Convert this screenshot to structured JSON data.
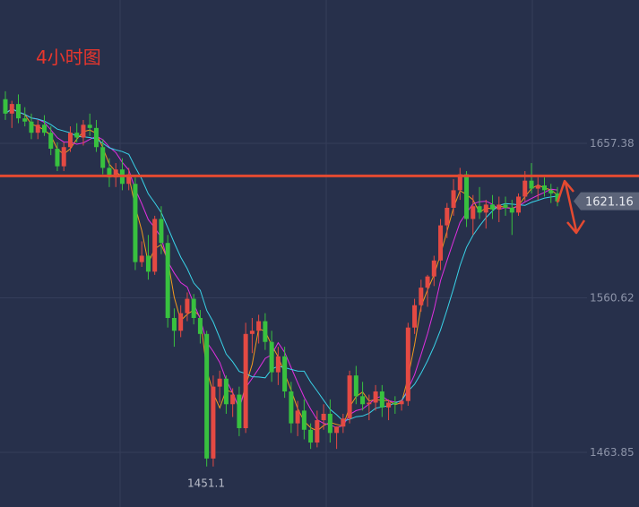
{
  "chart_data": {
    "type": "candlestick",
    "title": "4小时图",
    "y_ticks": [
      1657.38,
      1560.62,
      1463.85
    ],
    "y_tick_labels": [
      "1657.38",
      "1560.62",
      "1463.85"
    ],
    "current_price": 1621.16,
    "current_price_label": "1621.16",
    "resistance_level": 1637,
    "low_annotation": {
      "value": 1451.1,
      "label": "1451.1"
    },
    "series": [
      {
        "name": "",
        "color": "#f29a1e",
        "role": "fast-ma"
      },
      {
        "name": "",
        "color": "#e12fe0",
        "role": "mid-ma"
      },
      {
        "name": "",
        "color": "#39d3e8",
        "role": "slow-ma"
      }
    ],
    "colors": {
      "up": "#e44a43",
      "down": "#38c13f",
      "resistance": "#e44a31",
      "background": "#27304b",
      "grid": "#353e5a"
    },
    "candles": [
      [
        1685,
        1690,
        1672,
        1676
      ],
      [
        1676,
        1684,
        1667,
        1682
      ],
      [
        1682,
        1688,
        1670,
        1673
      ],
      [
        1673,
        1680,
        1668,
        1671
      ],
      [
        1671,
        1676,
        1660,
        1664
      ],
      [
        1664,
        1672,
        1660,
        1669
      ],
      [
        1669,
        1675,
        1662,
        1664
      ],
      [
        1664,
        1668,
        1650,
        1654
      ],
      [
        1654,
        1658,
        1640,
        1643
      ],
      [
        1643,
        1658,
        1640,
        1655
      ],
      [
        1655,
        1668,
        1652,
        1664
      ],
      [
        1664,
        1670,
        1658,
        1661
      ],
      [
        1661,
        1672,
        1656,
        1669
      ],
      [
        1669,
        1676,
        1662,
        1667
      ],
      [
        1667,
        1672,
        1652,
        1655
      ],
      [
        1655,
        1660,
        1638,
        1642
      ],
      [
        1642,
        1648,
        1630,
        1636
      ],
      [
        1636,
        1645,
        1630,
        1641
      ],
      [
        1641,
        1648,
        1628,
        1632
      ],
      [
        1632,
        1642,
        1628,
        1638
      ],
      [
        1632,
        1636,
        1578,
        1583
      ],
      [
        1583,
        1596,
        1580,
        1587
      ],
      [
        1587,
        1600,
        1572,
        1577
      ],
      [
        1577,
        1612,
        1575,
        1610
      ],
      [
        1610,
        1618,
        1588,
        1595
      ],
      [
        1595,
        1600,
        1542,
        1548
      ],
      [
        1548,
        1554,
        1530,
        1540
      ],
      [
        1540,
        1556,
        1536,
        1551
      ],
      [
        1551,
        1564,
        1546,
        1560
      ],
      [
        1560,
        1563,
        1544,
        1548
      ],
      [
        1548,
        1553,
        1532,
        1538
      ],
      [
        1538,
        1540,
        1455,
        1460
      ],
      [
        1460,
        1512,
        1455,
        1505
      ],
      [
        1505,
        1515,
        1495,
        1510
      ],
      [
        1510,
        1512,
        1488,
        1494
      ],
      [
        1494,
        1504,
        1486,
        1500
      ],
      [
        1500,
        1505,
        1474,
        1479
      ],
      [
        1479,
        1545,
        1476,
        1538
      ],
      [
        1538,
        1548,
        1526,
        1540
      ],
      [
        1540,
        1550,
        1532,
        1546
      ],
      [
        1546,
        1551,
        1528,
        1533
      ],
      [
        1533,
        1540,
        1508,
        1514
      ],
      [
        1514,
        1530,
        1506,
        1524
      ],
      [
        1524,
        1530,
        1498,
        1502
      ],
      [
        1502,
        1508,
        1476,
        1482
      ],
      [
        1482,
        1496,
        1474,
        1490
      ],
      [
        1490,
        1497,
        1472,
        1478
      ],
      [
        1478,
        1482,
        1466,
        1470
      ],
      [
        1470,
        1490,
        1467,
        1484
      ],
      [
        1484,
        1494,
        1478,
        1488
      ],
      [
        1488,
        1497,
        1470,
        1476
      ],
      [
        1476,
        1480,
        1466,
        1480
      ],
      [
        1480,
        1488,
        1476,
        1485
      ],
      [
        1485,
        1515,
        1482,
        1512
      ],
      [
        1512,
        1518,
        1494,
        1499
      ],
      [
        1499,
        1508,
        1490,
        1494
      ],
      [
        1494,
        1500,
        1484,
        1495
      ],
      [
        1495,
        1506,
        1490,
        1502
      ],
      [
        1502,
        1506,
        1486,
        1492
      ],
      [
        1492,
        1497,
        1484,
        1495
      ],
      [
        1495,
        1499,
        1488,
        1494
      ],
      [
        1494,
        1497,
        1490,
        1496
      ],
      [
        1496,
        1545,
        1493,
        1542
      ],
      [
        1542,
        1560,
        1538,
        1556
      ],
      [
        1556,
        1572,
        1552,
        1567
      ],
      [
        1567,
        1575,
        1555,
        1574
      ],
      [
        1574,
        1587,
        1568,
        1584
      ],
      [
        1584,
        1610,
        1578,
        1606
      ],
      [
        1606,
        1620,
        1598,
        1617
      ],
      [
        1617,
        1635,
        1612,
        1628
      ],
      [
        1628,
        1642,
        1622,
        1638
      ],
      [
        1638,
        1640,
        1605,
        1610
      ],
      [
        1610,
        1625,
        1600,
        1618
      ],
      [
        1618,
        1630,
        1610,
        1614
      ],
      [
        1614,
        1622,
        1604,
        1619
      ],
      [
        1619,
        1625,
        1610,
        1616
      ],
      [
        1616,
        1624,
        1608,
        1619
      ],
      [
        1619,
        1624,
        1612,
        1617
      ],
      [
        1617,
        1622,
        1600,
        1614
      ],
      [
        1614,
        1626,
        1612,
        1624
      ],
      [
        1624,
        1640,
        1621,
        1634
      ],
      [
        1634,
        1645,
        1626,
        1629
      ],
      [
        1629,
        1636,
        1622,
        1631
      ],
      [
        1631,
        1636,
        1624,
        1628
      ],
      [
        1628,
        1632,
        1620,
        1626
      ],
      [
        1626,
        1630,
        1618,
        1621
      ]
    ]
  }
}
